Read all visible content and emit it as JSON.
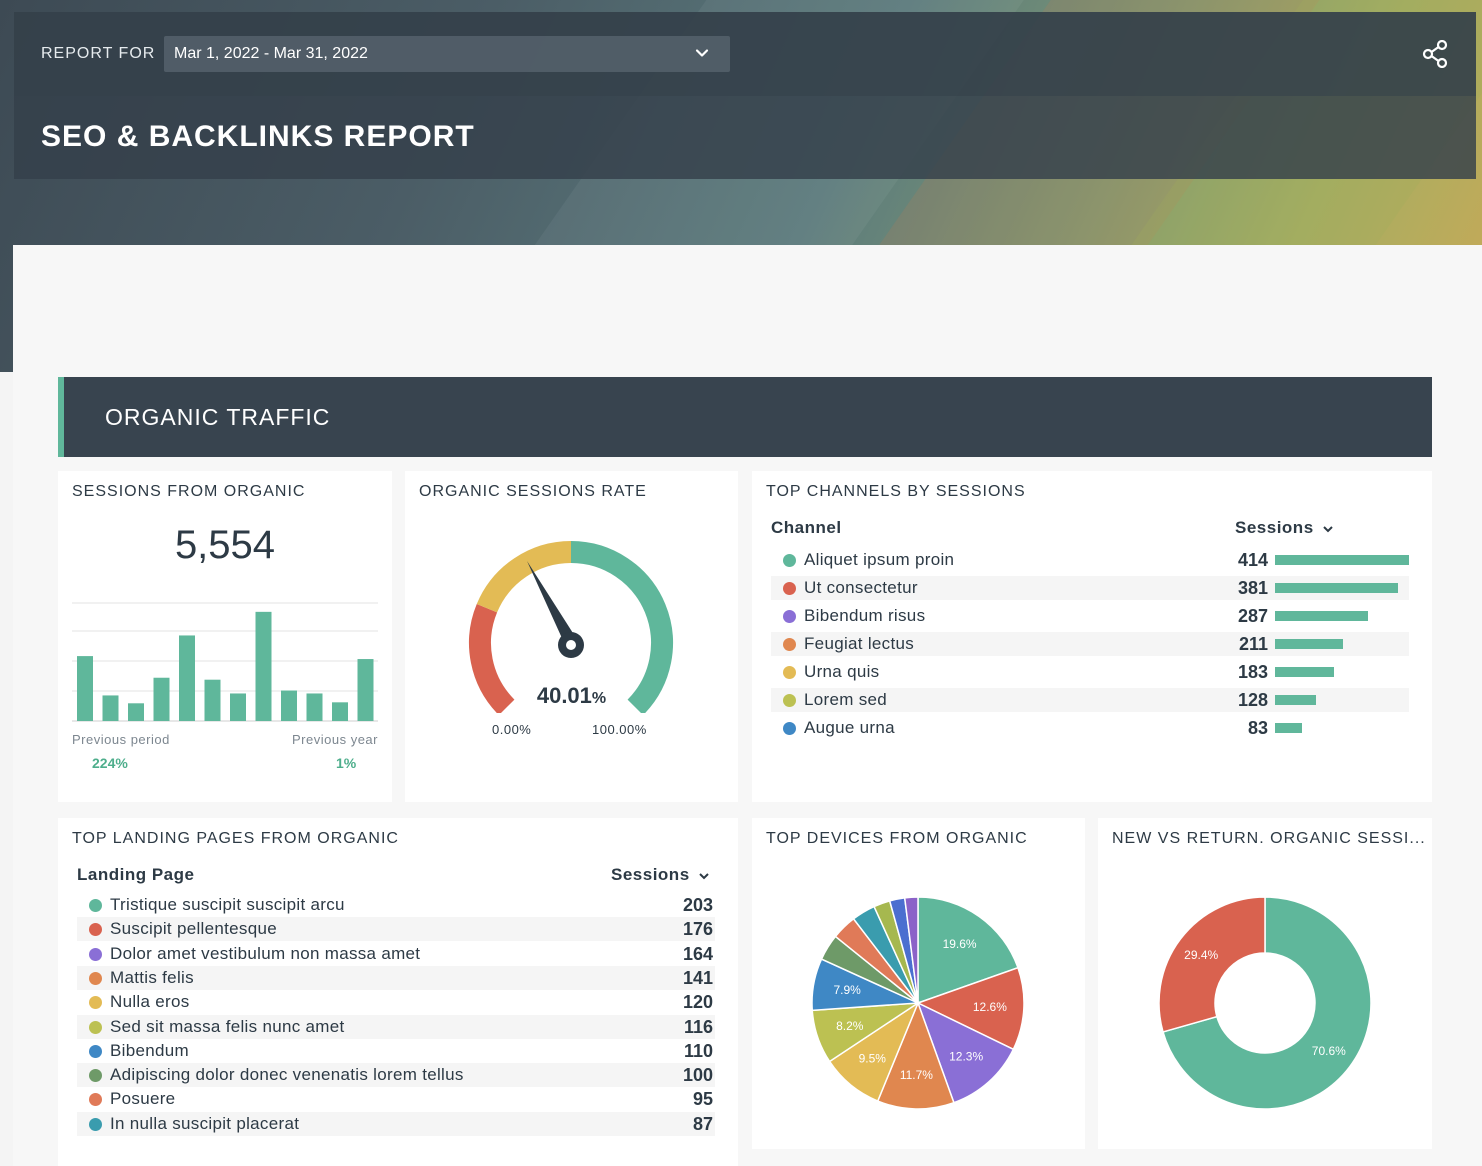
{
  "header": {
    "report_for_label": "REPORT FOR",
    "date_range": "Mar 1, 2022 - Mar 31, 2022",
    "title": "SEO & BACKLINKS REPORT"
  },
  "section": {
    "title": "ORGANIC TRAFFIC"
  },
  "sessions_card": {
    "title": "SESSIONS FROM ORGANIC",
    "value": "5,554",
    "prev_period_label": "Previous period",
    "prev_period_value": "224%",
    "prev_year_label": "Previous year",
    "prev_year_value": "1%"
  },
  "gauge_card": {
    "title": "ORGANIC SESSIONS RATE",
    "value": "40.01",
    "unit": "%",
    "min_label": "0.00%",
    "max_label": "100.00%"
  },
  "channels_card": {
    "title": "TOP CHANNELS BY SESSIONS",
    "col_channel": "Channel",
    "col_sessions": "Sessions",
    "rows": [
      {
        "label": "Aliquet ipsum proin",
        "value": "414",
        "color": "#5fb79b"
      },
      {
        "label": "Ut consectetur",
        "value": "381",
        "color": "#d9624f"
      },
      {
        "label": "Bibendum risus",
        "value": "287",
        "color": "#8a6fd6"
      },
      {
        "label": "Feugiat lectus",
        "value": "211",
        "color": "#e0874f"
      },
      {
        "label": "Urna quis",
        "value": "183",
        "color": "#e3bb55"
      },
      {
        "label": "Lorem sed",
        "value": "128",
        "color": "#bcc152"
      },
      {
        "label": "Augue urna",
        "value": "83",
        "color": "#3f88c5"
      }
    ]
  },
  "landing_card": {
    "title": "TOP LANDING PAGES FROM ORGANIC",
    "col_page": "Landing Page",
    "col_sessions": "Sessions",
    "rows": [
      {
        "label": "Tristique suscipit suscipit arcu",
        "value": "203",
        "color": "#5fb79b"
      },
      {
        "label": "Suscipit pellentesque",
        "value": "176",
        "color": "#d9624f"
      },
      {
        "label": "Dolor amet vestibulum non massa amet",
        "value": "164",
        "color": "#8a6fd6"
      },
      {
        "label": "Mattis felis",
        "value": "141",
        "color": "#e0874f"
      },
      {
        "label": "Nulla eros",
        "value": "120",
        "color": "#e3bb55"
      },
      {
        "label": "Sed sit massa felis nunc amet",
        "value": "116",
        "color": "#bcc152"
      },
      {
        "label": "Bibendum",
        "value": "110",
        "color": "#3f88c5"
      },
      {
        "label": "Adipiscing dolor donec venenatis lorem tellus",
        "value": "100",
        "color": "#6e9a68"
      },
      {
        "label": "Posuere",
        "value": "95",
        "color": "#e07a58"
      },
      {
        "label": "In nulla suscipit placerat",
        "value": "87",
        "color": "#3a9cae"
      }
    ]
  },
  "devices_card": {
    "title": "TOP DEVICES FROM ORGANIC"
  },
  "newret_card": {
    "title": "NEW VS RETURN. ORGANIC SESSI..."
  },
  "chart_data": [
    {
      "type": "bar",
      "title": "SESSIONS FROM ORGANIC",
      "values": [
        66,
        26,
        18,
        44,
        87,
        42,
        28,
        111,
        31,
        28,
        19,
        63
      ],
      "color": "#5fb79b"
    },
    {
      "type": "pie",
      "title": "TOP DEVICES FROM ORGANIC",
      "slices": [
        {
          "value": 19.6,
          "label": "19.6%",
          "color": "#5fb79b"
        },
        {
          "value": 12.6,
          "label": "12.6%",
          "color": "#d9624f"
        },
        {
          "value": 12.3,
          "label": "12.3%",
          "color": "#8a6fd6"
        },
        {
          "value": 11.7,
          "label": "11.7%",
          "color": "#e0874f"
        },
        {
          "value": 9.5,
          "label": "9.5%",
          "color": "#e3bb55"
        },
        {
          "value": 8.2,
          "label": "8.2%",
          "color": "#bcc152"
        },
        {
          "value": 7.9,
          "label": "7.9%",
          "color": "#3f88c5"
        },
        {
          "value": 4.0,
          "label": "",
          "color": "#6e9a68"
        },
        {
          "value": 3.8,
          "label": "",
          "color": "#e07a58"
        },
        {
          "value": 3.6,
          "label": "",
          "color": "#3a9cae"
        },
        {
          "value": 2.5,
          "label": "",
          "color": "#a6b84f"
        },
        {
          "value": 2.3,
          "label": "",
          "color": "#4b6fd0"
        },
        {
          "value": 2.0,
          "label": "",
          "color": "#8b62c8"
        }
      ]
    },
    {
      "type": "pie",
      "title": "NEW VS RETURN. ORGANIC SESSI...",
      "slices": [
        {
          "value": 70.6,
          "label": "70.6%",
          "color": "#5fb79b"
        },
        {
          "value": 29.4,
          "label": "29.4%",
          "color": "#d9624f"
        }
      ]
    }
  ]
}
